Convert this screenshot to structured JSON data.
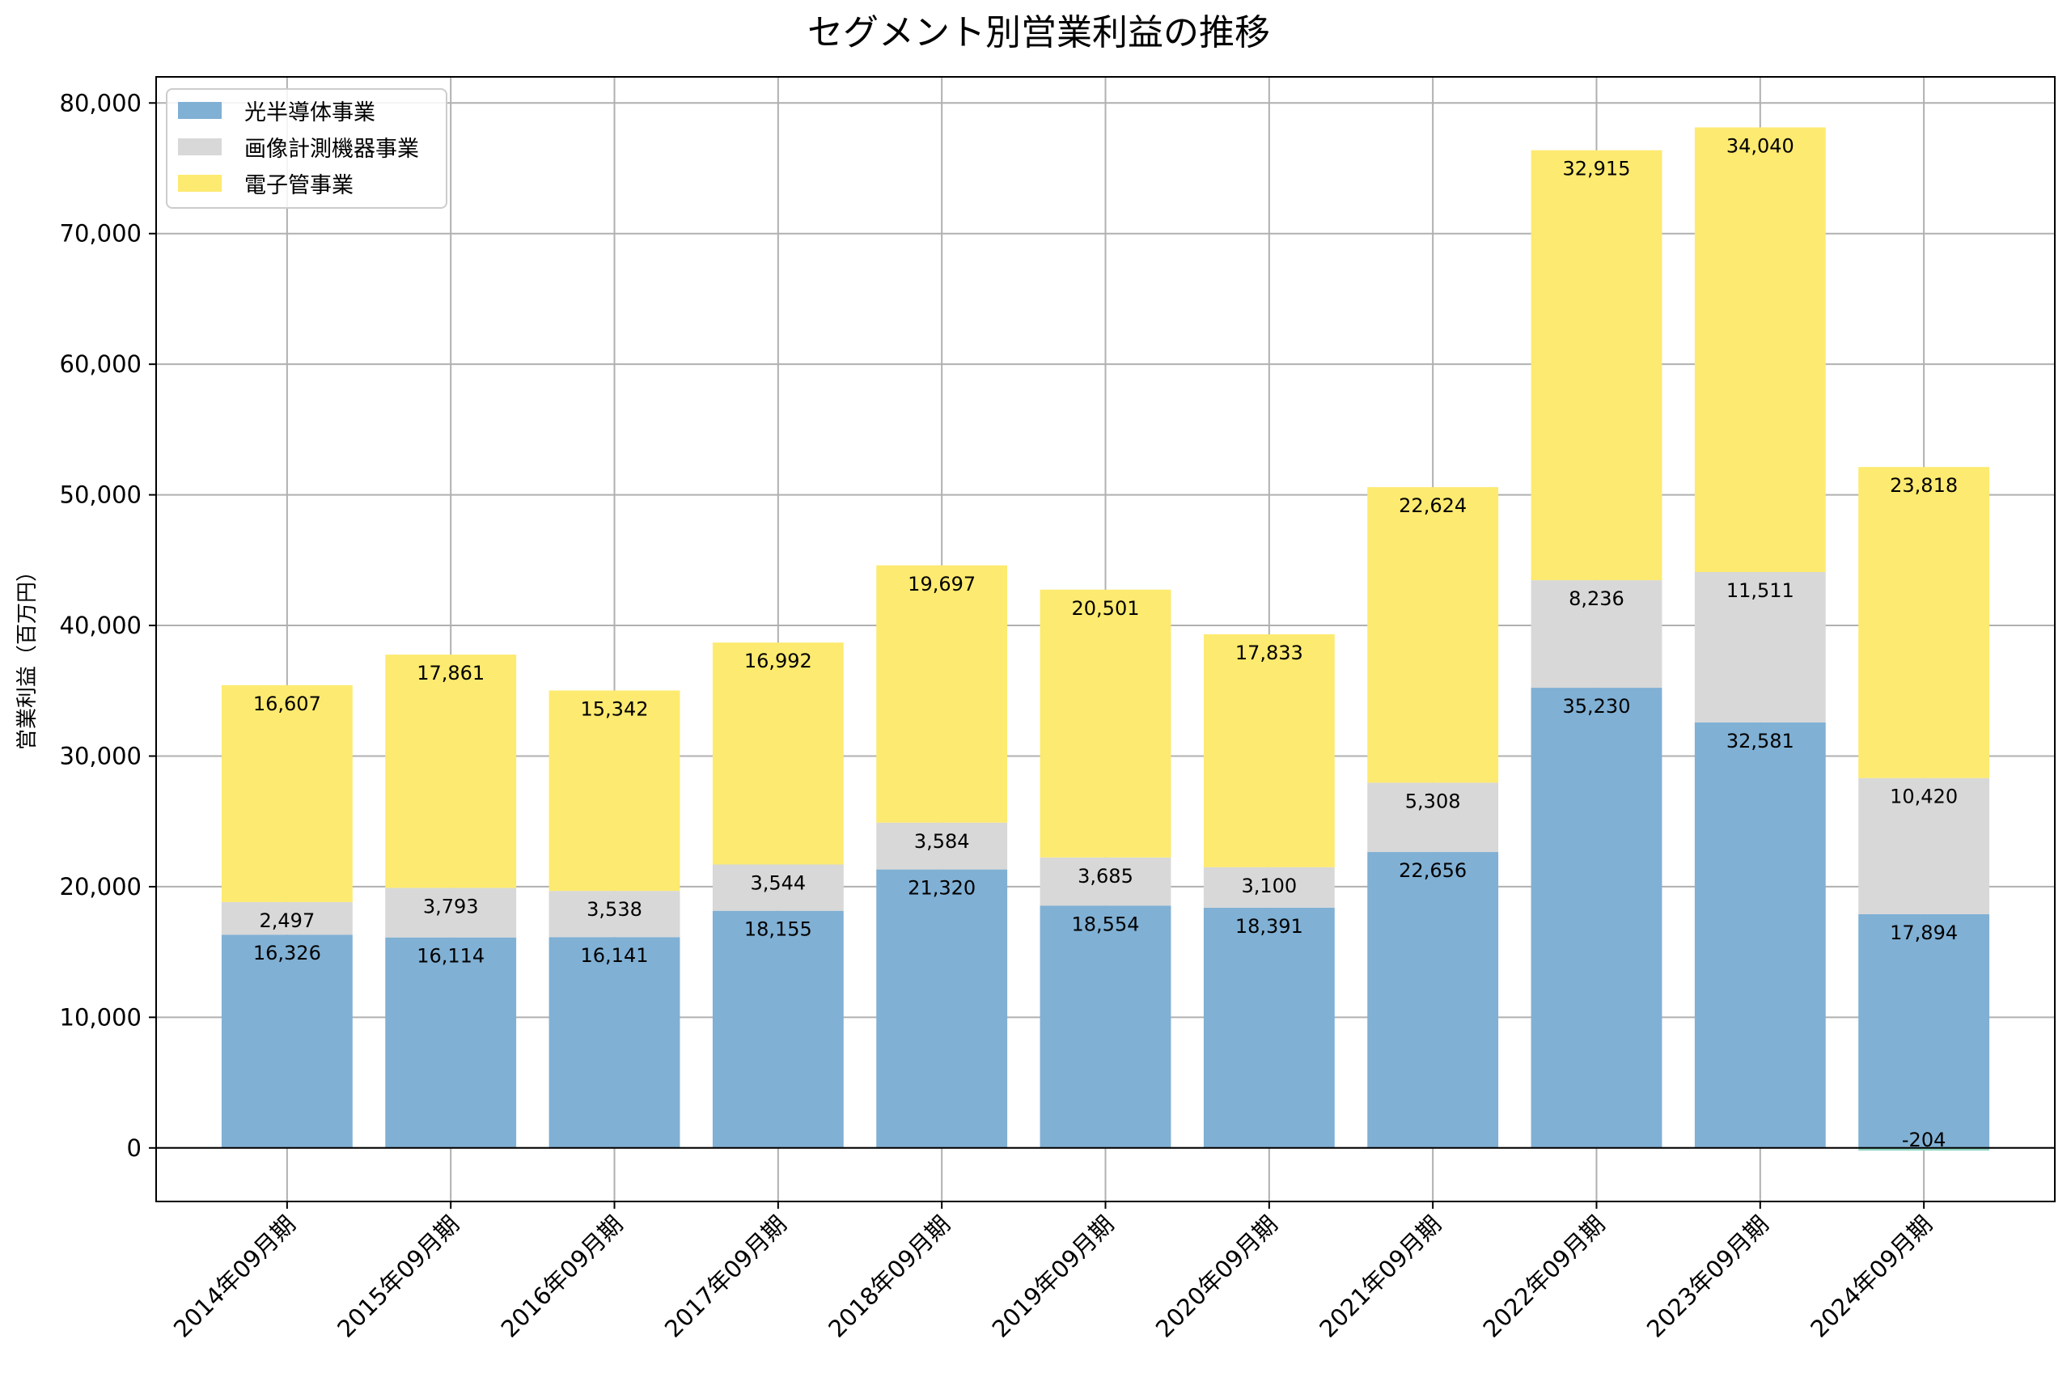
{
  "chart_data": {
    "type": "bar",
    "stacked": true,
    "title": "セグメント別営業利益の推移",
    "xlabel": "",
    "ylabel": "営業利益（百万円）",
    "ylim": [
      -4100,
      82000
    ],
    "yticks": [
      0,
      10000,
      20000,
      30000,
      40000,
      50000,
      60000,
      70000,
      80000
    ],
    "ytick_labels": [
      "0",
      "10,000",
      "20,000",
      "30,000",
      "40,000",
      "50,000",
      "60,000",
      "70,000",
      "80,000"
    ],
    "grid": true,
    "legend_position": "top-left",
    "categories": [
      "2014年09月期",
      "2015年09月期",
      "2016年09月期",
      "2017年09月期",
      "2018年09月期",
      "2019年09月期",
      "2020年09月期",
      "2021年09月期",
      "2022年09月期",
      "2023年09月期",
      "2024年09月期"
    ],
    "series": [
      {
        "name": "光半導体事業",
        "color": "#80b0d4",
        "values": [
          16326,
          16114,
          16141,
          18155,
          21320,
          18554,
          18391,
          22656,
          35230,
          32581,
          17894
        ],
        "labels": [
          "16,326",
          "16,114",
          "16,141",
          "18,155",
          "21,320",
          "18,554",
          "18,391",
          "22,656",
          "35,230",
          "32,581",
          "17,894"
        ]
      },
      {
        "name": "画像計測機器事業",
        "color": "#d8d8d8",
        "values": [
          2497,
          3793,
          3538,
          3544,
          3584,
          3685,
          3100,
          5308,
          8236,
          11511,
          10420
        ],
        "labels": [
          "2,497",
          "3,793",
          "3,538",
          "3,544",
          "3,584",
          "3,685",
          "3,100",
          "5,308",
          "8,236",
          "11,511",
          "10,420"
        ]
      },
      {
        "name": "電子管事業",
        "color": "#fdea70",
        "values": [
          16607,
          17861,
          15342,
          16992,
          19697,
          20501,
          17833,
          22624,
          32915,
          34040,
          23818
        ],
        "labels": [
          "16,607",
          "17,861",
          "15,342",
          "16,992",
          "19,697",
          "20,501",
          "17,833",
          "22,624",
          "32,915",
          "34,040",
          "23,818"
        ]
      }
    ],
    "extra_bars": [
      {
        "category_index": 10,
        "value": -204,
        "label": "-204",
        "color": "#8fd4c0"
      }
    ]
  }
}
